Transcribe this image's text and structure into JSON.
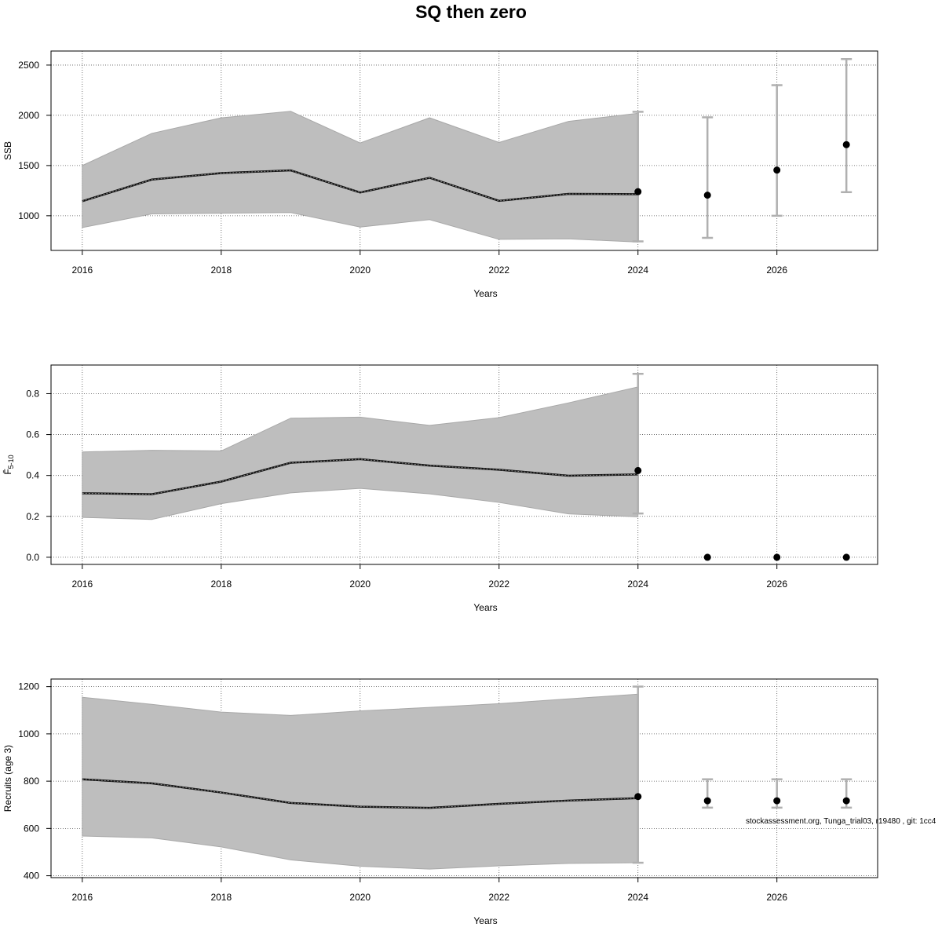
{
  "title": "SQ then zero",
  "footnote": "stockassessment.org, Tunga_trial03, r19480 , git: 1cc4",
  "chart_data": [
    {
      "type": "line",
      "name": "ssb",
      "ylabel": "SSB",
      "xlabel": "Years",
      "xlim": [
        2015.55,
        2027.45
      ],
      "ylim": [
        655,
        2640
      ],
      "xticks": [
        2016,
        2018,
        2020,
        2022,
        2024,
        2026
      ],
      "yticks": [
        1000,
        1500,
        2000,
        2500
      ],
      "grid": true,
      "series": [
        {
          "name": "estimate",
          "x": [
            2016,
            2017,
            2018,
            2019,
            2020,
            2021,
            2022,
            2023,
            2024
          ],
          "values": [
            1145,
            1360,
            1425,
            1452,
            1232,
            1378,
            1148,
            1218,
            1215
          ]
        },
        {
          "name": "lower",
          "x": [
            2016,
            2017,
            2018,
            2019,
            2020,
            2021,
            2022,
            2023,
            2024
          ],
          "values": [
            882,
            1018,
            1025,
            1032,
            888,
            962,
            765,
            770,
            738
          ]
        },
        {
          "name": "upper",
          "x": [
            2016,
            2017,
            2018,
            2019,
            2020,
            2021,
            2022,
            2023,
            2024
          ],
          "values": [
            1500,
            1820,
            1975,
            2040,
            1725,
            1975,
            1730,
            1940,
            2020
          ]
        }
      ],
      "forecast": [
        {
          "x": 2024,
          "median": 1240,
          "low": 745,
          "high": 2035
        },
        {
          "x": 2025,
          "median": 1205,
          "low": 780,
          "high": 1980
        },
        {
          "x": 2026,
          "median": 1455,
          "low": 1000,
          "high": 2300
        },
        {
          "x": 2027,
          "median": 1708,
          "low": 1235,
          "high": 2560
        }
      ]
    },
    {
      "type": "line",
      "name": "fbar",
      "ylabel": "F̄",
      "ylabel_sub": "5-10",
      "xlabel": "Years",
      "xlim": [
        2015.55,
        2027.45
      ],
      "ylim": [
        -0.035,
        0.94
      ],
      "xticks": [
        2016,
        2018,
        2020,
        2022,
        2024,
        2026
      ],
      "yticks": [
        0.0,
        0.2,
        0.4,
        0.6,
        0.8
      ],
      "ytick_labels": [
        "0.0",
        "0.2",
        "0.4",
        "0.6",
        "0.8"
      ],
      "grid": true,
      "series": [
        {
          "name": "estimate",
          "x": [
            2016,
            2017,
            2018,
            2019,
            2020,
            2021,
            2022,
            2023,
            2024
          ],
          "values": [
            0.313,
            0.308,
            0.37,
            0.462,
            0.48,
            0.448,
            0.428,
            0.399,
            0.405
          ]
        },
        {
          "name": "lower",
          "x": [
            2016,
            2017,
            2018,
            2019,
            2020,
            2021,
            2022,
            2023,
            2024
          ],
          "values": [
            0.195,
            0.185,
            0.262,
            0.315,
            0.337,
            0.31,
            0.268,
            0.212,
            0.198
          ]
        },
        {
          "name": "upper",
          "x": [
            2016,
            2017,
            2018,
            2019,
            2020,
            2021,
            2022,
            2023,
            2024
          ],
          "values": [
            0.515,
            0.523,
            0.52,
            0.68,
            0.685,
            0.645,
            0.683,
            0.755,
            0.833
          ]
        }
      ],
      "forecast": [
        {
          "x": 2024,
          "median": 0.424,
          "low": 0.214,
          "high": 0.897
        },
        {
          "x": 2025,
          "median": 0.0,
          "low": 0.0,
          "high": 0.0
        },
        {
          "x": 2026,
          "median": 0.0,
          "low": 0.0,
          "high": 0.0
        },
        {
          "x": 2027,
          "median": 0.0,
          "low": 0.0,
          "high": 0.0
        }
      ]
    },
    {
      "type": "line",
      "name": "recruits",
      "ylabel": "Recruits (age 3)",
      "xlabel": "Years",
      "xlim": [
        2015.55,
        2027.45
      ],
      "ylim": [
        392,
        1232
      ],
      "xticks": [
        2016,
        2018,
        2020,
        2022,
        2024,
        2026
      ],
      "yticks": [
        400,
        600,
        800,
        1000,
        1200
      ],
      "grid": true,
      "series": [
        {
          "name": "estimate",
          "x": [
            2016,
            2017,
            2018,
            2019,
            2020,
            2021,
            2022,
            2023,
            2024
          ],
          "values": [
            808,
            791,
            752,
            708,
            692,
            687,
            704,
            718,
            728
          ]
        },
        {
          "name": "lower",
          "x": [
            2016,
            2017,
            2018,
            2019,
            2020,
            2021,
            2022,
            2023,
            2024
          ],
          "values": [
            568,
            560,
            522,
            467,
            440,
            428,
            442,
            452,
            455
          ]
        },
        {
          "name": "upper",
          "x": [
            2016,
            2017,
            2018,
            2019,
            2020,
            2021,
            2022,
            2023,
            2024
          ],
          "values": [
            1155,
            1125,
            1092,
            1078,
            1097,
            1112,
            1128,
            1148,
            1168
          ]
        }
      ],
      "forecast": [
        {
          "x": 2024,
          "median": 735,
          "low": 455,
          "high": 1200
        },
        {
          "x": 2025,
          "median": 717,
          "low": 688,
          "high": 808
        },
        {
          "x": 2026,
          "median": 717,
          "low": 688,
          "high": 808
        },
        {
          "x": 2027,
          "median": 717,
          "low": 688,
          "high": 808
        }
      ]
    }
  ]
}
